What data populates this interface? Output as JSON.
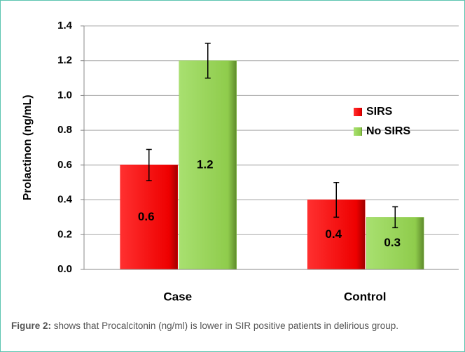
{
  "chart_data": {
    "type": "bar",
    "y_label": "Prolactinon  (ng/mL)",
    "categories": [
      "Case",
      "Control"
    ],
    "series": [
      {
        "name": "SIRS",
        "color": "#ff0000",
        "values": [
          0.6,
          0.4
        ],
        "errors": [
          0.09,
          0.1
        ]
      },
      {
        "name": "No SIRS",
        "color": "#92d050",
        "values": [
          1.2,
          0.3
        ],
        "errors": [
          0.1,
          0.06
        ]
      }
    ],
    "ylim": [
      0,
      1.4
    ],
    "yticks": [
      {
        "value": 0,
        "label": "0.0"
      },
      0.2,
      0.4,
      0.6,
      0.8,
      {
        "value": 1,
        "label": "1.0"
      },
      1.2,
      1.4
    ],
    "grid": true,
    "legend": "upper right"
  },
  "caption": {
    "label": "Figure 2:",
    "text": "shows that Procalcitonin (ng/ml) is lower in SIR positive patients in delirious group."
  }
}
